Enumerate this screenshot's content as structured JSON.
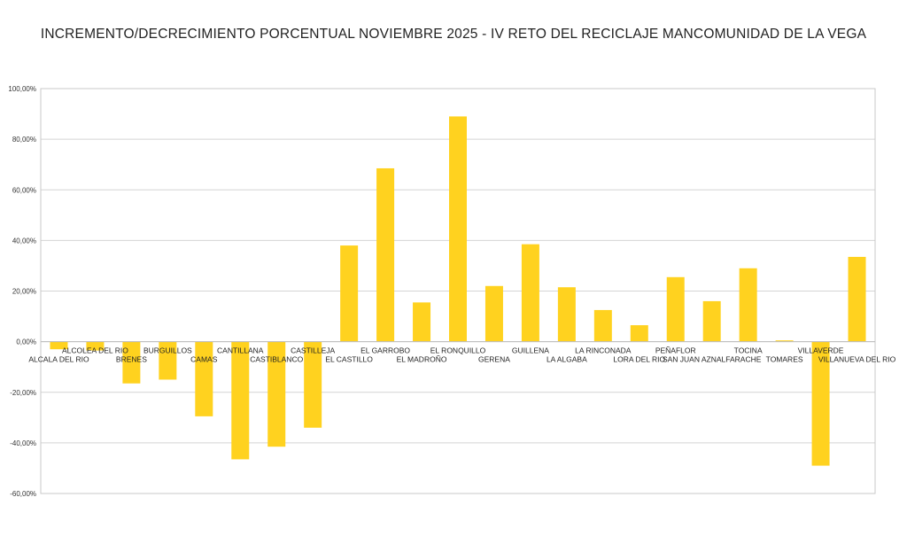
{
  "colors": {
    "bar": "#FFD21F",
    "grid": "#d4d4d4",
    "frame": "#c8c8c8",
    "text": "#222222"
  },
  "chart_data": {
    "type": "bar",
    "title": "INCREMENTO/DECRECIMIENTO PORCENTUAL NOVIEMBRE 2025 - IV RETO DEL RECICLAJE MANCOMUNIDAD DE LA VEGA",
    "xlabel": "",
    "ylabel": "",
    "ylim": [
      -60,
      100
    ],
    "grid": true,
    "y_ticks": [
      {
        "value": 100,
        "label": "100,00%"
      },
      {
        "value": 80,
        "label": "80,00%"
      },
      {
        "value": 60,
        "label": "60,00%"
      },
      {
        "value": 40,
        "label": "40,00%"
      },
      {
        "value": 20,
        "label": "20,00%"
      },
      {
        "value": 0,
        "label": "0,00%"
      },
      {
        "value": -20,
        "label": "-20,00%"
      },
      {
        "value": -40,
        "label": "-40,00%"
      },
      {
        "value": -60,
        "label": "-60,00%"
      }
    ],
    "categories": [
      "ALCALA DEL RIO",
      "ALCOLEA DEL RIO",
      "BRENES",
      "BURGUILLOS",
      "CAMAS",
      "CANTILLANA",
      "CASTIBLANCO",
      "CASTILLEJA",
      "EL CASTILLO",
      "EL GARROBO",
      "EL MADROÑO",
      "EL RONQUILLO",
      "GERENA",
      "GUILLENA",
      "LA ALGABA",
      "LA RINCONADA",
      "LORA DEL RIO",
      "PEÑAFLOR",
      "SAN JUAN AZNALFARACHE",
      "TOCINA",
      "TOMARES",
      "VILLAVERDE",
      "VILLANUEVA DEL RIO"
    ],
    "values": [
      -3,
      -3.5,
      -16.5,
      -15,
      -29.5,
      -46.5,
      -41.5,
      -34,
      38,
      68.5,
      15.5,
      89,
      22,
      38.5,
      21.5,
      12.5,
      6.5,
      25.5,
      16,
      29,
      0.5,
      -49,
      33.5
    ]
  }
}
